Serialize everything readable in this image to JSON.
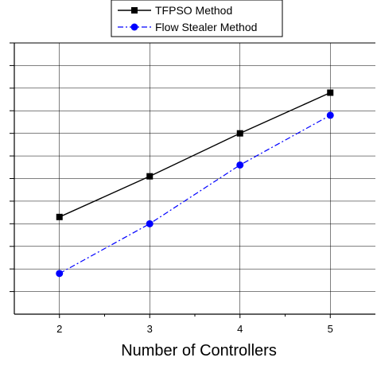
{
  "chart_data": {
    "type": "line",
    "xlabel": "Number of Controllers",
    "ylabel": "",
    "x": [
      2,
      3,
      4,
      5
    ],
    "xlim": [
      1.5,
      5.5
    ],
    "ylim": [
      0,
      12
    ],
    "grid": true,
    "legend_position": "top",
    "series": [
      {
        "name": "TFPSO Method",
        "values": [
          4.3,
          6.1,
          8.0,
          9.8
        ],
        "color": "#000000",
        "marker": "square",
        "line_style": "solid"
      },
      {
        "name": "Flow Stealer Method",
        "values": [
          1.8,
          4.0,
          6.6,
          8.8
        ],
        "color": "#0000ff",
        "marker": "circle",
        "line_style": "dash-dot"
      }
    ],
    "x_ticks": [
      "2",
      "3",
      "4",
      "5"
    ]
  }
}
